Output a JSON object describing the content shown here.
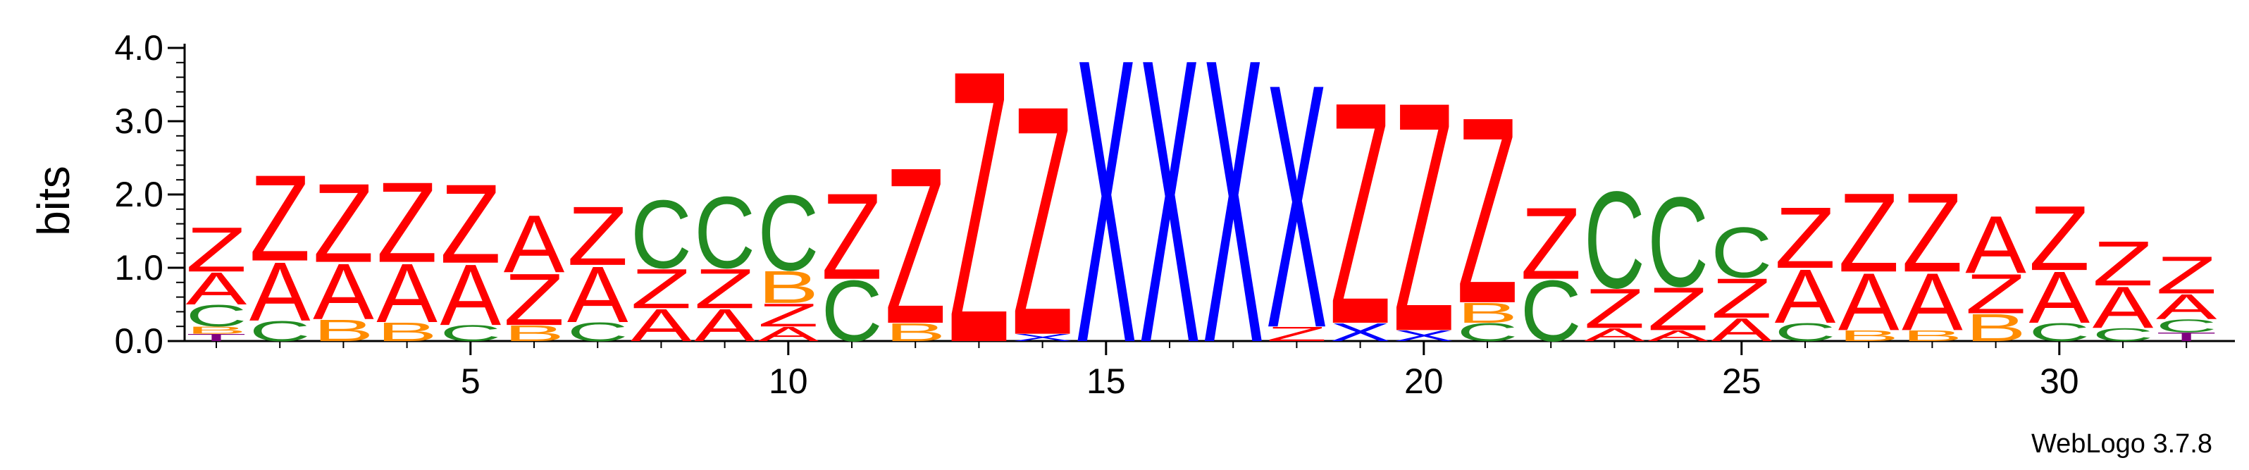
{
  "chart_data": {
    "type": "sequence-logo",
    "ylabel": "bits",
    "ylim": [
      0,
      4.0
    ],
    "y_ticks": [
      "0.0",
      "1.0",
      "2.0",
      "3.0",
      "4.0"
    ],
    "x_ticks": [
      5,
      10,
      15,
      20,
      25,
      30
    ],
    "n_positions": 32,
    "colors": {
      "Z": "#ff0000",
      "A": "#ff0000",
      "X": "#0000ff",
      "C": "#228b22",
      "B": "#ff8c00",
      "T": "#800080"
    },
    "columns": [
      {
        "position": 1,
        "letters": [
          [
            "T",
            0.1
          ],
          [
            "B",
            0.1
          ],
          [
            "C",
            0.3
          ],
          [
            "A",
            0.45
          ],
          [
            "Z",
            0.62
          ]
        ]
      },
      {
        "position": 2,
        "letters": [
          [
            "C",
            0.28
          ],
          [
            "A",
            0.82
          ],
          [
            "Z",
            1.2
          ]
        ]
      },
      {
        "position": 3,
        "letters": [
          [
            "B",
            0.3
          ],
          [
            "A",
            0.78
          ],
          [
            "Z",
            1.1
          ]
        ]
      },
      {
        "position": 4,
        "letters": [
          [
            "B",
            0.26
          ],
          [
            "A",
            0.82
          ],
          [
            "Z",
            1.12
          ]
        ]
      },
      {
        "position": 5,
        "letters": [
          [
            "C",
            0.22
          ],
          [
            "A",
            0.85
          ],
          [
            "Z",
            1.1
          ]
        ]
      },
      {
        "position": 6,
        "letters": [
          [
            "B",
            0.22
          ],
          [
            "Z",
            0.72
          ],
          [
            "A",
            0.8
          ]
        ]
      },
      {
        "position": 7,
        "letters": [
          [
            "C",
            0.26
          ],
          [
            "A",
            0.78
          ],
          [
            "Z",
            0.82
          ]
        ]
      },
      {
        "position": 8,
        "letters": [
          [
            "A",
            0.45
          ],
          [
            "Z",
            0.55
          ],
          [
            "C",
            0.95
          ]
        ]
      },
      {
        "position": 9,
        "letters": [
          [
            "A",
            0.45
          ],
          [
            "Z",
            0.55
          ],
          [
            "C",
            1.0
          ]
        ]
      },
      {
        "position": 10,
        "letters": [
          [
            "A",
            0.2
          ],
          [
            "Z",
            0.32
          ],
          [
            "B",
            0.45
          ],
          [
            "C",
            1.05
          ]
        ]
      },
      {
        "position": 11,
        "letters": [
          [
            "C",
            0.85
          ],
          [
            "Z",
            1.2
          ]
        ]
      },
      {
        "position": 12,
        "letters": [
          [
            "B",
            0.25
          ],
          [
            "Z",
            2.18
          ]
        ]
      },
      {
        "position": 13,
        "letters": [
          [
            "Z",
            3.8
          ]
        ]
      },
      {
        "position": 14,
        "letters": [
          [
            "X",
            0.1
          ],
          [
            "Z",
            3.2
          ]
        ]
      },
      {
        "position": 15,
        "letters": [
          [
            "X",
            3.96
          ]
        ]
      },
      {
        "position": 16,
        "letters": [
          [
            "X",
            3.96
          ]
        ]
      },
      {
        "position": 17,
        "letters": [
          [
            "X",
            3.96
          ]
        ]
      },
      {
        "position": 18,
        "letters": [
          [
            "Z",
            0.2
          ],
          [
            "X",
            3.4
          ]
        ]
      },
      {
        "position": 19,
        "letters": [
          [
            "X",
            0.25
          ],
          [
            "Z",
            3.1
          ]
        ]
      },
      {
        "position": 20,
        "letters": [
          [
            "X",
            0.15
          ],
          [
            "Z",
            3.2
          ]
        ]
      },
      {
        "position": 21,
        "letters": [
          [
            "C",
            0.25
          ],
          [
            "B",
            0.28
          ],
          [
            "Z",
            2.6
          ]
        ]
      },
      {
        "position": 22,
        "letters": [
          [
            "C",
            0.85
          ],
          [
            "Z",
            1.0
          ]
        ]
      },
      {
        "position": 23,
        "letters": [
          [
            "A",
            0.18
          ],
          [
            "Z",
            0.55
          ],
          [
            "C",
            1.35
          ]
        ]
      },
      {
        "position": 24,
        "letters": [
          [
            "A",
            0.15
          ],
          [
            "Z",
            0.6
          ],
          [
            "C",
            1.25
          ]
        ]
      },
      {
        "position": 25,
        "letters": [
          [
            "A",
            0.32
          ],
          [
            "Z",
            0.55
          ],
          [
            "C",
            0.7
          ]
        ]
      },
      {
        "position": 26,
        "letters": [
          [
            "C",
            0.25
          ],
          [
            "A",
            0.75
          ],
          [
            "Z",
            0.85
          ]
        ]
      },
      {
        "position": 27,
        "letters": [
          [
            "B",
            0.15
          ],
          [
            "A",
            0.8
          ],
          [
            "Z",
            1.1
          ]
        ]
      },
      {
        "position": 28,
        "letters": [
          [
            "B",
            0.15
          ],
          [
            "A",
            0.8
          ],
          [
            "Z",
            1.1
          ]
        ]
      },
      {
        "position": 29,
        "letters": [
          [
            "B",
            0.38
          ],
          [
            "Z",
            0.55
          ],
          [
            "A",
            0.8
          ]
        ]
      },
      {
        "position": 30,
        "letters": [
          [
            "C",
            0.25
          ],
          [
            "A",
            0.72
          ],
          [
            "Z",
            0.9
          ]
        ]
      },
      {
        "position": 31,
        "letters": [
          [
            "C",
            0.18
          ],
          [
            "A",
            0.58
          ],
          [
            "Z",
            0.62
          ]
        ]
      },
      {
        "position": 32,
        "letters": [
          [
            "T",
            0.12
          ],
          [
            "C",
            0.18
          ],
          [
            "A",
            0.35
          ],
          [
            "Z",
            0.52
          ]
        ]
      }
    ]
  },
  "credit": "WebLogo 3.7.8"
}
